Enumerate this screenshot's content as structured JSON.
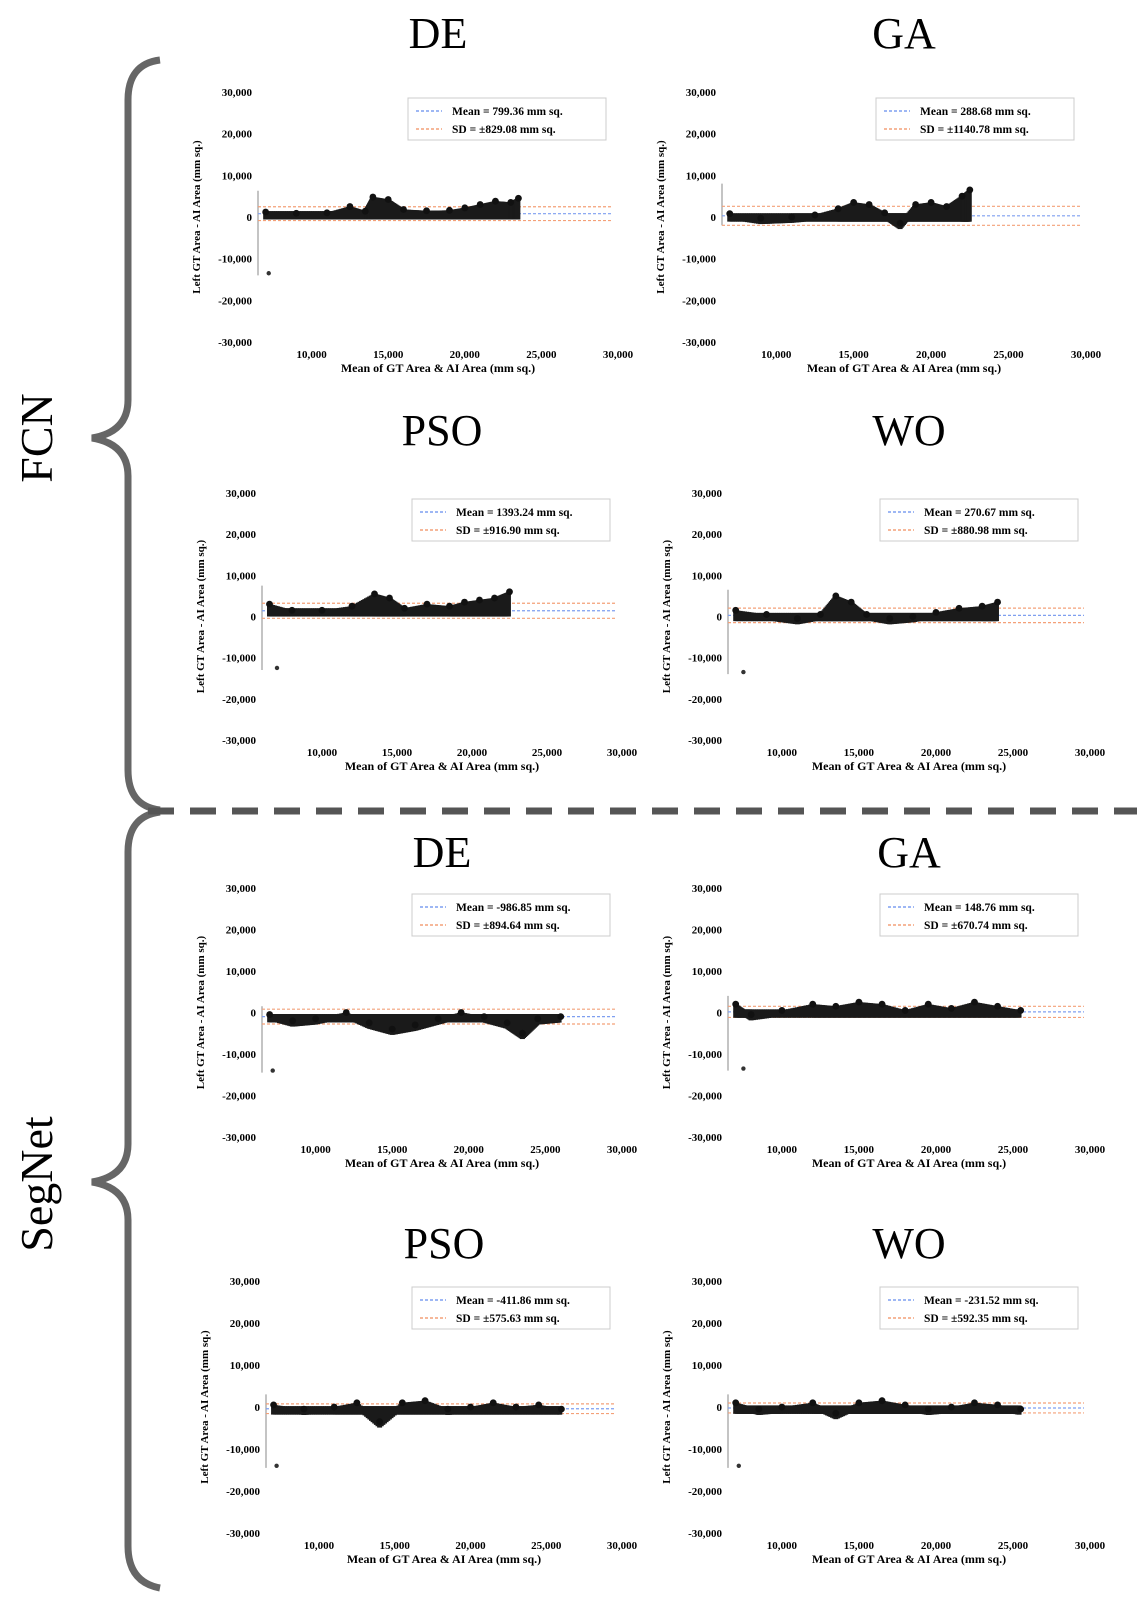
{
  "groups": [
    {
      "label": "FCN"
    },
    {
      "label": "SegNet"
    }
  ],
  "chart_data": [
    {
      "type": "scatter",
      "group": "FCN",
      "title": "DE",
      "xlabel": "Mean of GT Area & AI Area (mm sq.)",
      "ylabel": "Left GT Area - AI Area (mm sq.)",
      "xlim": [
        6500,
        30000
      ],
      "ylim": [
        -30000,
        30000
      ],
      "xticks": [
        10000,
        15000,
        20000,
        25000,
        30000
      ],
      "yticks": [
        30000,
        20000,
        10000,
        0,
        -10000,
        -20000,
        -30000
      ],
      "xtick_labels": [
        "10,000",
        "15,000",
        "20,000",
        "25,000",
        "30,000"
      ],
      "ytick_labels": [
        "30,000",
        "20,000",
        "10,000",
        "0",
        "-10,000",
        "-20,000",
        "-30,000"
      ],
      "legend": [
        "Mean = 799.36 mm sq.",
        "SD = ±829.08 mm sq."
      ],
      "mean": 799.36,
      "sd": 829.08,
      "legend_position": "top-right",
      "grid": false,
      "series": [
        {
          "x": [
            7000,
            9000,
            11000,
            12500,
            13500,
            14000,
            15000,
            16000,
            17500,
            19000,
            20000,
            21000,
            22000,
            23000,
            23500
          ],
          "y": [
            1200,
            900,
            1000,
            2500,
            1400,
            4800,
            4200,
            1800,
            1500,
            1600,
            2200,
            3000,
            3800,
            3500,
            4500
          ]
        }
      ],
      "outliers": [
        {
          "x": 7200,
          "y": -13500
        }
      ]
    },
    {
      "type": "scatter",
      "group": "FCN",
      "title": "GA",
      "xlabel": "Mean of GT Area & AI Area (mm sq.)",
      "ylabel": "Left GT Area - AI Area (mm sq.)",
      "xlim": [
        6500,
        30000
      ],
      "ylim": [
        -30000,
        30000
      ],
      "xticks": [
        10000,
        15000,
        20000,
        25000,
        30000
      ],
      "yticks": [
        30000,
        20000,
        10000,
        0,
        -10000,
        -20000,
        -30000
      ],
      "xtick_labels": [
        "10,000",
        "15,000",
        "20,000",
        "25,000",
        "30,000"
      ],
      "ytick_labels": [
        "30,000",
        "20,000",
        "10,000",
        "0",
        "-10,000",
        "-20,000",
        "-30,000"
      ],
      "legend": [
        "Mean = 288.68 mm sq.",
        "SD = ±1140.78 mm sq."
      ],
      "mean": 288.68,
      "sd": 1140.78,
      "legend_position": "top-right",
      "grid": false,
      "series": [
        {
          "x": [
            7000,
            9000,
            11000,
            12500,
            14000,
            15000,
            16000,
            17000,
            18000,
            19000,
            20000,
            21000,
            22000,
            22500
          ],
          "y": [
            800,
            -300,
            0,
            500,
            2000,
            3500,
            3000,
            1000,
            -1500,
            3000,
            3500,
            2500,
            5000,
            6500
          ]
        }
      ],
      "outliers": []
    },
    {
      "type": "scatter",
      "group": "FCN",
      "title": "PSO",
      "xlabel": "Mean of GT Area & AI Area (mm sq.)",
      "ylabel": "Left GT Area - AI Area (mm sq.)",
      "xlim": [
        6000,
        30000
      ],
      "ylim": [
        -30000,
        30000
      ],
      "xticks": [
        10000,
        15000,
        20000,
        25000,
        30000
      ],
      "yticks": [
        30000,
        20000,
        10000,
        0,
        -10000,
        -20000,
        -30000
      ],
      "xtick_labels": [
        "10,000",
        "15,000",
        "20,000",
        "25,000",
        "30,000"
      ],
      "ytick_labels": [
        "30,000",
        "20,000",
        "10,000",
        "0",
        "-10,000",
        "-20,000",
        "-30,000"
      ],
      "legend": [
        "Mean = 1393.24 mm sq.",
        "SD = ±916.90 mm sq."
      ],
      "mean": 1393.24,
      "sd": 916.9,
      "legend_position": "top-right",
      "grid": false,
      "series": [
        {
          "x": [
            6500,
            8000,
            10000,
            12000,
            13500,
            14500,
            15500,
            17000,
            18500,
            19500,
            20500,
            21500,
            22500
          ],
          "y": [
            3000,
            1500,
            1500,
            2500,
            5500,
            4500,
            2000,
            3000,
            2500,
            3500,
            4000,
            4500,
            6000
          ]
        }
      ],
      "outliers": [
        {
          "x": 7000,
          "y": -12500
        }
      ]
    },
    {
      "type": "scatter",
      "group": "FCN",
      "title": "WO",
      "xlabel": "Mean of GT Area & AI Area (mm sq.)",
      "ylabel": "Left GT Area - AI Area (mm sq.)",
      "xlim": [
        6500,
        30000
      ],
      "ylim": [
        -30000,
        30000
      ],
      "xticks": [
        10000,
        15000,
        20000,
        25000,
        30000
      ],
      "yticks": [
        30000,
        20000,
        10000,
        0,
        -10000,
        -20000,
        -30000
      ],
      "xtick_labels": [
        "10,000",
        "15,000",
        "20,000",
        "25,000",
        "30,000"
      ],
      "ytick_labels": [
        "30,000",
        "20,000",
        "10,000",
        "0",
        "-10,000",
        "-20,000",
        "-30,000"
      ],
      "legend": [
        "Mean = 270.67 mm sq.",
        "SD = ±880.98 mm sq."
      ],
      "mean": 270.67,
      "sd": 880.98,
      "legend_position": "top-right",
      "grid": false,
      "series": [
        {
          "x": [
            7000,
            9000,
            11000,
            12500,
            13500,
            14500,
            15500,
            17000,
            18500,
            20000,
            21500,
            23000,
            24000
          ],
          "y": [
            1500,
            500,
            -500,
            500,
            5000,
            3500,
            500,
            -500,
            0,
            1000,
            2000,
            2500,
            3500
          ]
        }
      ],
      "outliers": [
        {
          "x": 7500,
          "y": -13500
        }
      ]
    },
    {
      "type": "scatter",
      "group": "SegNet",
      "title": "DE",
      "xlabel": "Mean of GT Area & AI Area (mm sq.)",
      "ylabel": "Left GT Area - AI Area (mm sq.)",
      "xlim": [
        6500,
        30000
      ],
      "ylim": [
        -30000,
        30000
      ],
      "xticks": [
        10000,
        15000,
        20000,
        25000,
        30000
      ],
      "yticks": [
        30000,
        20000,
        10000,
        0,
        -10000,
        -20000,
        -30000
      ],
      "xtick_labels": [
        "10,000",
        "15,000",
        "20,000",
        "25,000",
        "30,000"
      ],
      "ytick_labels": [
        "30,000",
        "20,000",
        "10,000",
        "0",
        "-10,000",
        "-20,000",
        "-30,000"
      ],
      "legend": [
        "Mean = -986.85 mm sq.",
        "SD = ±894.64 mm sq."
      ],
      "mean": -986.85,
      "sd": 894.64,
      "legend_position": "top-right",
      "grid": false,
      "series": [
        {
          "x": [
            7000,
            8500,
            10000,
            12000,
            13500,
            15000,
            16500,
            18000,
            19500,
            21000,
            22500,
            23500,
            24500,
            26000
          ],
          "y": [
            -500,
            -2000,
            -1500,
            0,
            -2500,
            -4000,
            -3000,
            -1500,
            0,
            -1000,
            -2500,
            -5000,
            -1500,
            -1000
          ]
        }
      ],
      "outliers": [
        {
          "x": 7200,
          "y": -14000
        }
      ]
    },
    {
      "type": "scatter",
      "group": "SegNet",
      "title": "GA",
      "xlabel": "Mean of GT Area & AI Area (mm sq.)",
      "ylabel": "Left GT Area - AI Area (mm sq.)",
      "xlim": [
        6500,
        30000
      ],
      "ylim": [
        -30000,
        30000
      ],
      "xticks": [
        10000,
        15000,
        20000,
        25000,
        30000
      ],
      "yticks": [
        30000,
        20000,
        10000,
        0,
        -10000,
        -20000,
        -30000
      ],
      "xtick_labels": [
        "10,000",
        "15,000",
        "20,000",
        "25,000",
        "30,000"
      ],
      "ytick_labels": [
        "30,000",
        "20,000",
        "10,000",
        "0",
        "-10,000",
        "-20,000",
        "-30,000"
      ],
      "legend": [
        "Mean = 148.76 mm sq.",
        "SD = ±670.74 mm sq."
      ],
      "mean": 148.76,
      "sd": 670.74,
      "legend_position": "top-right",
      "grid": false,
      "series": [
        {
          "x": [
            7000,
            8000,
            10000,
            12000,
            13500,
            15000,
            16500,
            18000,
            19500,
            21000,
            22500,
            24000,
            25500
          ],
          "y": [
            2000,
            -500,
            500,
            2000,
            1500,
            2500,
            2000,
            500,
            2000,
            1000,
            2500,
            1500,
            500
          ]
        }
      ],
      "outliers": [
        {
          "x": 7500,
          "y": -13500
        }
      ]
    },
    {
      "type": "scatter",
      "group": "SegNet",
      "title": "PSO",
      "xlabel": "Mean of GT Area & AI Area (mm sq.)",
      "ylabel": "Left GT Area - AI Area (mm sq.)",
      "xlim": [
        6500,
        30000
      ],
      "ylim": [
        -30000,
        30000
      ],
      "xticks": [
        10000,
        15000,
        20000,
        25000,
        30000
      ],
      "yticks": [
        30000,
        20000,
        10000,
        0,
        -10000,
        -20000,
        -30000
      ],
      "xtick_labels": [
        "10,000",
        "15,000",
        "20,000",
        "25,000",
        "30,000"
      ],
      "ytick_labels": [
        "30,000",
        "20,000",
        "10,000",
        "0",
        "-10,000",
        "-20,000",
        "-30,000"
      ],
      "legend": [
        "Mean = -411.86 mm sq.",
        "SD = ±575.63 mm sq."
      ],
      "mean": -411.86,
      "sd": 575.63,
      "legend_position": "top-right",
      "grid": false,
      "series": [
        {
          "x": [
            7000,
            9000,
            11000,
            12500,
            14000,
            15500,
            17000,
            18500,
            20000,
            21500,
            23000,
            24500,
            26000
          ],
          "y": [
            500,
            -500,
            0,
            1000,
            -3500,
            1000,
            1500,
            -500,
            0,
            1000,
            0,
            500,
            -500
          ]
        }
      ],
      "outliers": [
        {
          "x": 7200,
          "y": -14000
        }
      ]
    },
    {
      "type": "scatter",
      "group": "SegNet",
      "title": "WO",
      "xlabel": "Mean of GT Area & AI Area (mm sq.)",
      "ylabel": "Left GT Area - AI Area (mm sq.)",
      "xlim": [
        6500,
        30000
      ],
      "ylim": [
        -30000,
        30000
      ],
      "xticks": [
        10000,
        15000,
        20000,
        25000,
        30000
      ],
      "yticks": [
        30000,
        20000,
        10000,
        0,
        -10000,
        -20000,
        -30000
      ],
      "xtick_labels": [
        "10,000",
        "15,000",
        "20,000",
        "25,000",
        "30,000"
      ],
      "ytick_labels": [
        "30,000",
        "20,000",
        "10,000",
        "0",
        "-10,000",
        "-20,000",
        "-30,000"
      ],
      "legend": [
        "Mean = -231.52 mm sq.",
        "SD = ±592.35 mm sq."
      ],
      "mean": -231.52,
      "sd": 592.35,
      "legend_position": "top-right",
      "grid": false,
      "series": [
        {
          "x": [
            7000,
            8500,
            10000,
            12000,
            13500,
            15000,
            16500,
            18000,
            19500,
            21000,
            22500,
            24000,
            25500
          ],
          "y": [
            1000,
            -500,
            0,
            1000,
            -1500,
            1000,
            1500,
            500,
            -500,
            0,
            1000,
            500,
            -500
          ]
        }
      ],
      "outliers": [
        {
          "x": 7200,
          "y": -14000
        }
      ]
    }
  ]
}
